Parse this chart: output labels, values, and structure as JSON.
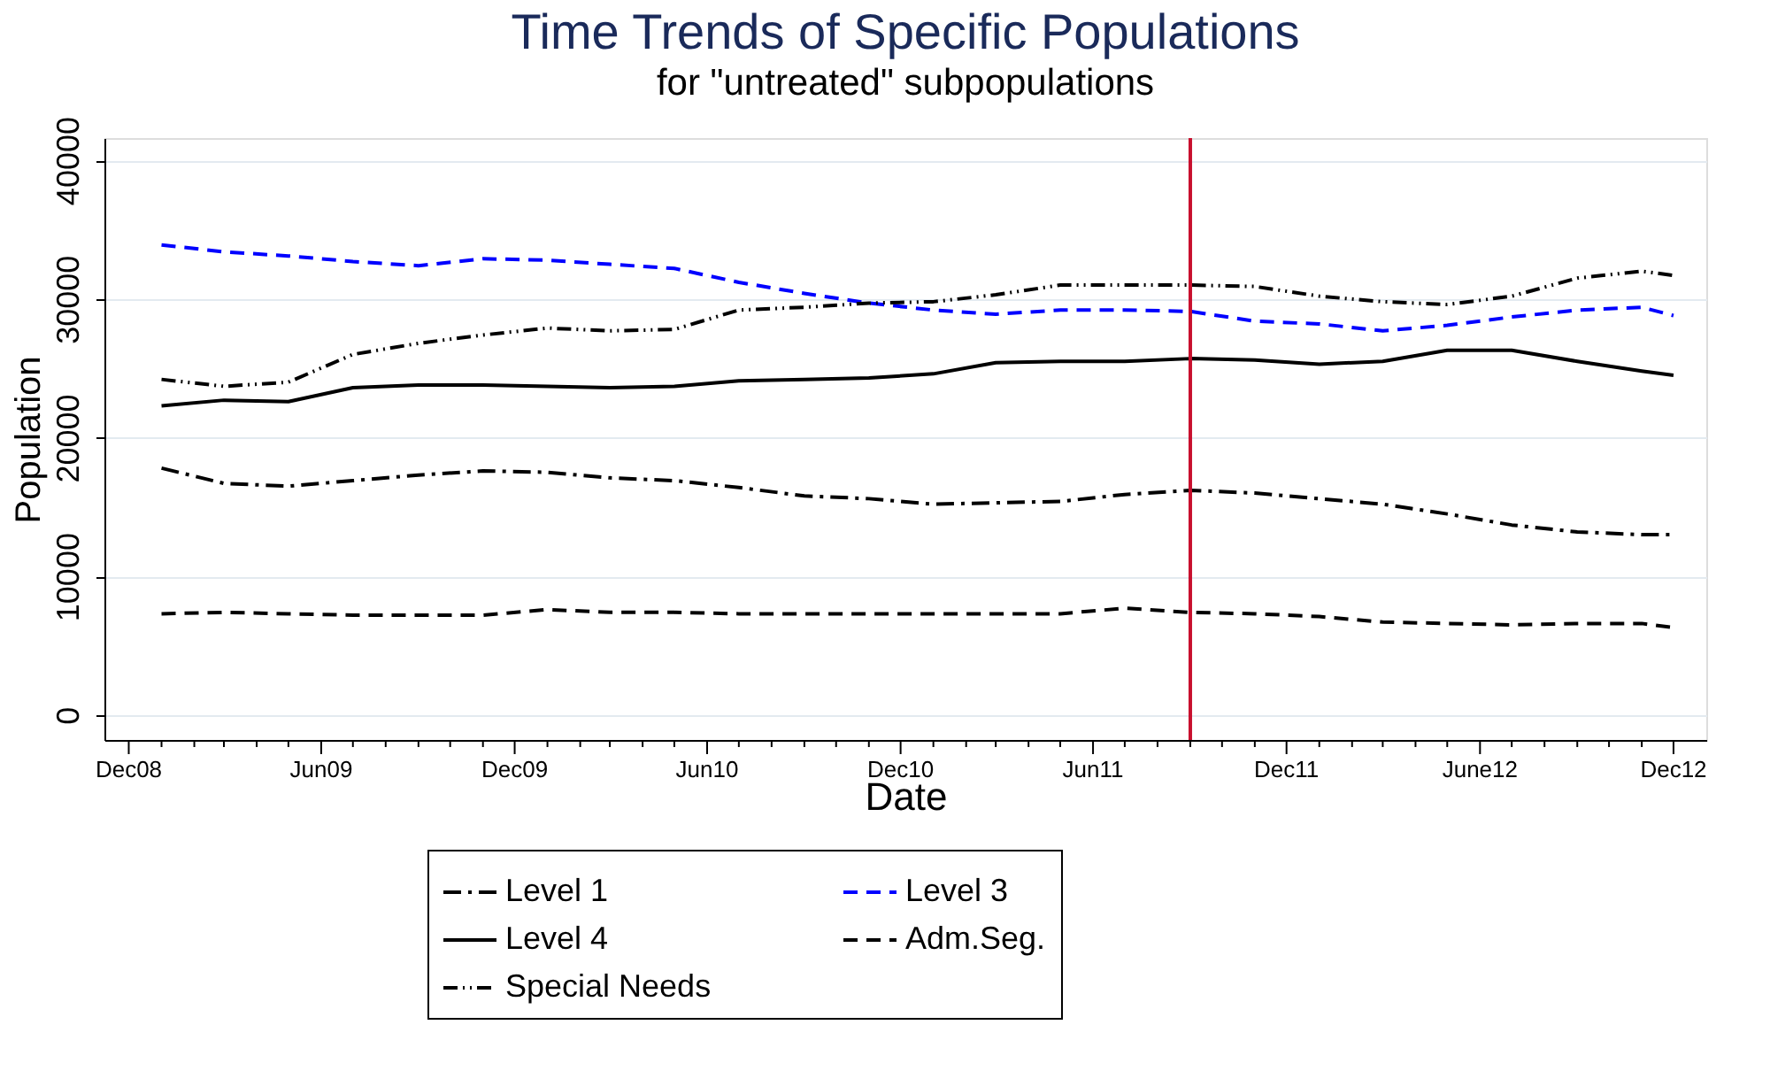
{
  "chart_data": {
    "type": "line",
    "title": "Time Trends of Specific Populations",
    "subtitle": "for \"untreated\" subpopulations",
    "xlabel": "Date",
    "ylabel": "Population",
    "x": [
      "2009-01",
      "2009-03",
      "2009-05",
      "2009-07",
      "2009-09",
      "2009-11",
      "2010-01",
      "2010-03",
      "2010-05",
      "2010-07",
      "2010-09",
      "2010-11",
      "2011-01",
      "2011-03",
      "2011-05",
      "2011-07",
      "2011-09",
      "2011-11",
      "2012-01",
      "2012-03",
      "2012-05",
      "2012-07",
      "2012-09",
      "2012-11",
      "2012-12"
    ],
    "series": [
      {
        "name": "Level 1",
        "color": "#000000",
        "line_style": "dashdot",
        "values": [
          17800,
          16700,
          16500,
          16900,
          17300,
          17600,
          17500,
          17100,
          16900,
          16400,
          15800,
          15600,
          15200,
          15300,
          15400,
          15900,
          16200,
          16000,
          15600,
          15200,
          14500,
          13700,
          13200,
          13000,
          13000
        ]
      },
      {
        "name": "Level 3",
        "color": "#0000ff",
        "line_style": "dashed",
        "values": [
          33900,
          33400,
          33100,
          32700,
          32400,
          32900,
          32800,
          32500,
          32200,
          31200,
          30400,
          29700,
          29200,
          28900,
          29200,
          29200,
          29100,
          28400,
          28200,
          27700,
          28100,
          28700,
          29200,
          29400,
          28800
        ]
      },
      {
        "name": "Level 4",
        "color": "#000000",
        "line_style": "solid",
        "values": [
          22300,
          22700,
          22600,
          23600,
          23800,
          23800,
          23700,
          23600,
          23700,
          24100,
          24200,
          24300,
          24600,
          25400,
          25500,
          25500,
          25700,
          25600,
          25300,
          25500,
          26300,
          26300,
          25500,
          24800,
          24500
        ]
      },
      {
        "name": "Adm.Seg.",
        "color": "#000000",
        "line_style": "dashed",
        "values": [
          7300,
          7400,
          7300,
          7200,
          7200,
          7200,
          7600,
          7400,
          7400,
          7300,
          7300,
          7300,
          7300,
          7300,
          7300,
          7700,
          7400,
          7300,
          7100,
          6700,
          6600,
          6500,
          6600,
          6600,
          6300
        ]
      },
      {
        "name": "Special Needs",
        "color": "#000000",
        "line_style": "dashdotdot",
        "values": [
          24200,
          23700,
          24000,
          26000,
          26800,
          27400,
          27900,
          27700,
          27800,
          29200,
          29400,
          29700,
          29800,
          30300,
          31000,
          31000,
          31000,
          30900,
          30200,
          29800,
          29600,
          30200,
          31500,
          32000,
          31700
        ]
      }
    ],
    "xlim": [
      "2008-11-08",
      "2013-01"
    ],
    "xticks": [
      {
        "value": "2008-12",
        "label": "Dec08"
      },
      {
        "value": "2009-01",
        "label": null
      },
      {
        "value": "2009-02",
        "label": null
      },
      {
        "value": "2009-03",
        "label": null
      },
      {
        "value": "2009-04",
        "label": null
      },
      {
        "value": "2009-05",
        "label": null
      },
      {
        "value": "2009-06",
        "label": "Jun09"
      },
      {
        "value": "2009-07",
        "label": null
      },
      {
        "value": "2009-08",
        "label": null
      },
      {
        "value": "2009-09",
        "label": null
      },
      {
        "value": "2009-10",
        "label": null
      },
      {
        "value": "2009-11",
        "label": null
      },
      {
        "value": "2009-12",
        "label": "Dec09"
      },
      {
        "value": "2010-01",
        "label": null
      },
      {
        "value": "2010-02",
        "label": null
      },
      {
        "value": "2010-03",
        "label": null
      },
      {
        "value": "2010-04",
        "label": null
      },
      {
        "value": "2010-05",
        "label": null
      },
      {
        "value": "2010-06",
        "label": "Jun10"
      },
      {
        "value": "2010-07",
        "label": null
      },
      {
        "value": "2010-08",
        "label": null
      },
      {
        "value": "2010-09",
        "label": null
      },
      {
        "value": "2010-10",
        "label": null
      },
      {
        "value": "2010-11",
        "label": null
      },
      {
        "value": "2010-12",
        "label": "Dec10"
      },
      {
        "value": "2011-01",
        "label": null
      },
      {
        "value": "2011-02",
        "label": null
      },
      {
        "value": "2011-03",
        "label": null
      },
      {
        "value": "2011-04",
        "label": null
      },
      {
        "value": "2011-05",
        "label": null
      },
      {
        "value": "2011-06",
        "label": "Jun11"
      },
      {
        "value": "2011-07",
        "label": null
      },
      {
        "value": "2011-08",
        "label": null
      },
      {
        "value": "2011-09",
        "label": null
      },
      {
        "value": "2011-10",
        "label": null
      },
      {
        "value": "2011-11",
        "label": null
      },
      {
        "value": "2011-12",
        "label": "Dec11"
      },
      {
        "value": "2012-01",
        "label": null
      },
      {
        "value": "2012-02",
        "label": null
      },
      {
        "value": "2012-03",
        "label": null
      },
      {
        "value": "2012-04",
        "label": null
      },
      {
        "value": "2012-05",
        "label": null
      },
      {
        "value": "2012-06",
        "label": "June12"
      },
      {
        "value": "2012-07",
        "label": null
      },
      {
        "value": "2012-08",
        "label": null
      },
      {
        "value": "2012-09",
        "label": null
      },
      {
        "value": "2012-10",
        "label": null
      },
      {
        "value": "2012-11",
        "label": null
      },
      {
        "value": "2012-12",
        "label": "Dec12"
      }
    ],
    "ylim": [
      -1800,
      41600
    ],
    "yticks": [
      0,
      10000,
      20000,
      30000,
      40000
    ],
    "grid": "y",
    "legend": "bottom",
    "ref_lines": [
      {
        "axis": "x",
        "value": "2011-09",
        "color": "#c8102e"
      }
    ]
  }
}
